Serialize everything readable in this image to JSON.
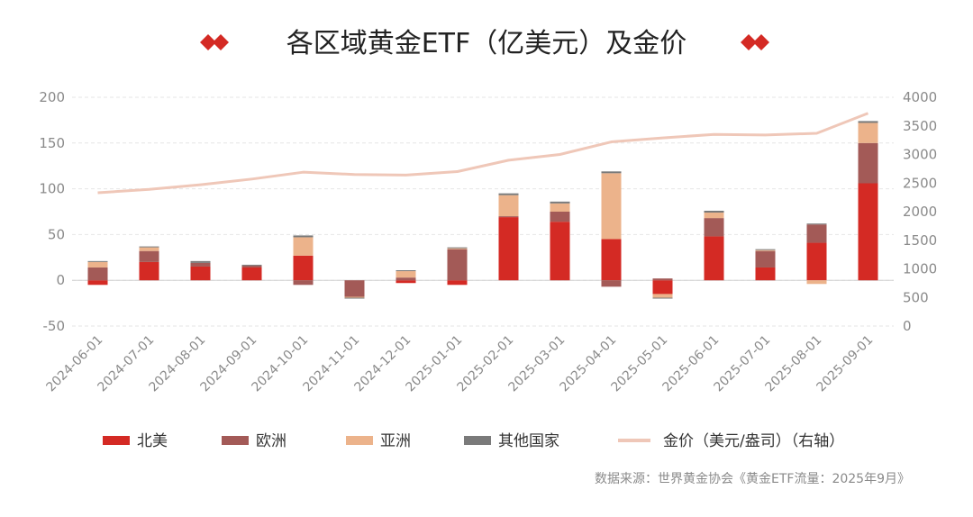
{
  "title": "各区域黄金ETF（亿美元）及金价",
  "source": "数据来源：世界黄金协会《黄金ETF流量：2025年9月》",
  "colors": {
    "north_america": "#d42a24",
    "europe": "#a35a57",
    "asia": "#ecb38b",
    "others": "#7a7a7a",
    "gold_price": "#efc7b8",
    "title_diamond": "#d42a24"
  },
  "chart_data": {
    "type": "bar",
    "stacked": true,
    "categories": [
      "2024-06-01",
      "2024-07-01",
      "2024-08-01",
      "2024-09-01",
      "2024-10-01",
      "2024-11-01",
      "2024-12-01",
      "2025-01-01",
      "2025-02-01",
      "2025-03-01",
      "2025-04-01",
      "2025-05-01",
      "2025-06-01",
      "2025-07-01",
      "2025-08-01",
      "2025-09-01"
    ],
    "series": [
      {
        "name": "北美",
        "values": [
          -5,
          20,
          15,
          14,
          27,
          0,
          -3,
          -5,
          69,
          64,
          45,
          -15,
          48,
          14,
          41,
          106
        ]
      },
      {
        "name": "欧洲",
        "values": [
          14,
          12,
          4,
          2,
          -5,
          -18,
          3,
          34,
          1,
          11,
          -7,
          2,
          20,
          18,
          20,
          44
        ]
      },
      {
        "name": "亚洲",
        "values": [
          6,
          4,
          0,
          0,
          20,
          -1,
          7,
          1,
          23,
          9,
          72,
          -4,
          6,
          1,
          -4,
          22
        ]
      },
      {
        "name": "其他国家",
        "values": [
          1,
          1,
          2,
          1,
          2,
          -1,
          1,
          1,
          2,
          2,
          2,
          -1,
          2,
          1,
          1,
          2
        ]
      },
      {
        "name": "金价（美元/盎司）（右轴）",
        "type": "line",
        "axis": "right",
        "values": [
          2330,
          2390,
          2470,
          2570,
          2690,
          2650,
          2640,
          2700,
          2900,
          3000,
          3220,
          3290,
          3350,
          3340,
          3370,
          3720
        ]
      }
    ],
    "ylim": [
      -50,
      200
    ],
    "yticks": [
      -50,
      0,
      50,
      100,
      150,
      200
    ],
    "y2lim": [
      0,
      4000
    ],
    "y2ticks": [
      0,
      500,
      1000,
      1500,
      2000,
      2500,
      3000,
      3500,
      4000
    ],
    "grid": true,
    "legend_position": "bottom"
  }
}
